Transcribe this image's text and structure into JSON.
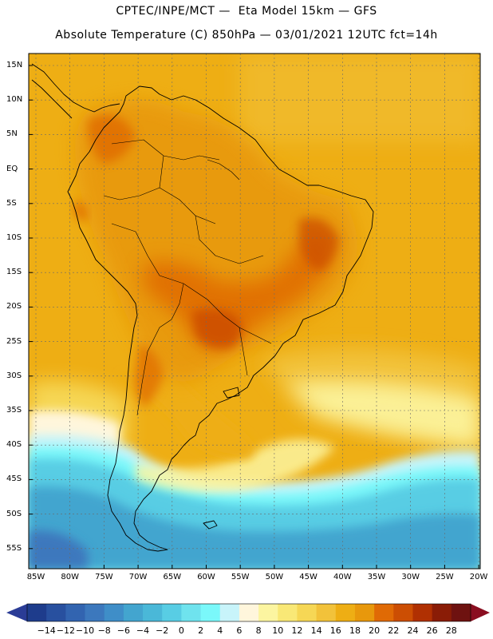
{
  "header": {
    "title_line1": "CPTEC/INPE/MCT —  Eta Model 15km — GFS",
    "title_line2": "Absolute Temperature (C) 850hPa — 03/01/2021 12UTC fct=14h"
  },
  "map": {
    "lat_labels": [
      "15N",
      "10N",
      "5N",
      "EQ",
      "5S",
      "10S",
      "15S",
      "20S",
      "25S",
      "30S",
      "35S",
      "40S",
      "45S",
      "50S",
      "55S"
    ],
    "lon_labels": [
      "85W",
      "80W",
      "75W",
      "70W",
      "65W",
      "60W",
      "55W",
      "50W",
      "45W",
      "40W",
      "35W",
      "30W",
      "25W",
      "20W"
    ]
  },
  "colorbar": {
    "labels": [
      "-14",
      "-12",
      "-10",
      "-8",
      "-6",
      "-4",
      "-2",
      "0",
      "2",
      "4",
      "6",
      "8",
      "10",
      "12",
      "14",
      "16",
      "18",
      "20",
      "22",
      "24",
      "26",
      "28"
    ],
    "colors": [
      "#1e3c8c",
      "#28509f",
      "#3264b0",
      "#3c78bd",
      "#3f8ec8",
      "#43a5cf",
      "#4ab8d8",
      "#58cde4",
      "#6fe3ee",
      "#7af8fa",
      "#c8f4fa",
      "#fff6dc",
      "#fcf5a0",
      "#f9e876",
      "#f6d755",
      "#f2c23a",
      "#eeae14",
      "#e8980c",
      "#e06a05",
      "#cc4e03",
      "#b03002",
      "#8a1c06",
      "#6e1210"
    ],
    "under_color": "#2a3c96",
    "over_color": "#8a0e20"
  }
}
